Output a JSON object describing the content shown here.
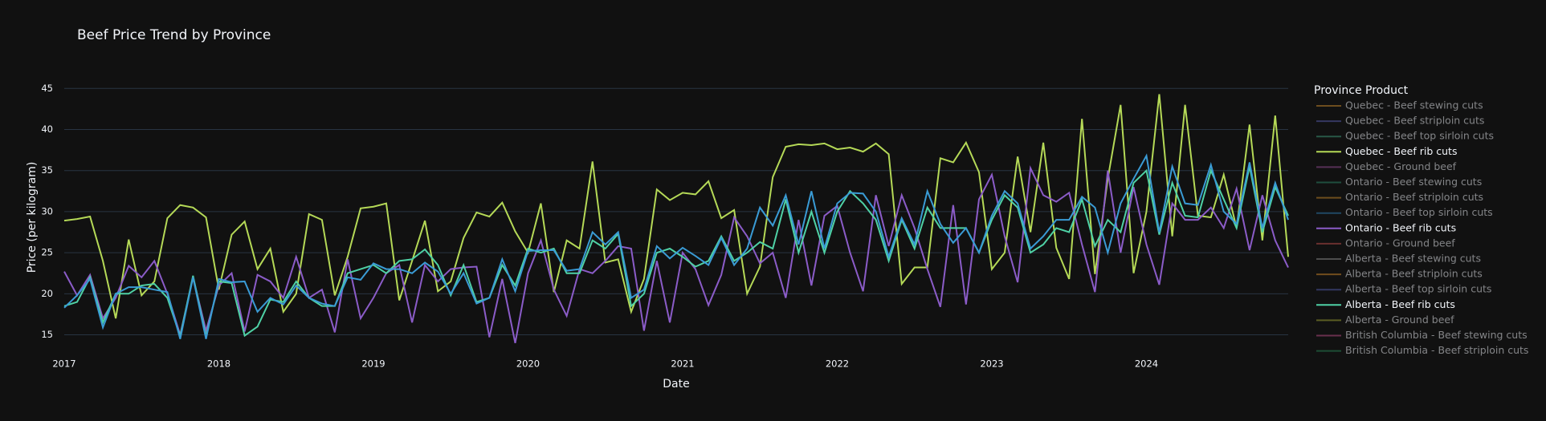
{
  "chart_data": {
    "type": "line",
    "title": "Beef Price Trend by Province",
    "x_label": "Date",
    "y_label": "Price (per kilogram)",
    "legend_title": "Province Product",
    "legend": "right",
    "grid": true,
    "x": [
      2017,
      2017.083,
      2017.167,
      2017.25,
      2017.333,
      2017.417,
      2017.5,
      2017.583,
      2017.667,
      2017.75,
      2017.833,
      2017.917,
      2018,
      2018.083,
      2018.167,
      2018.25,
      2018.333,
      2018.417,
      2018.5,
      2018.583,
      2018.667,
      2018.75,
      2018.833,
      2018.917,
      2019,
      2019.083,
      2019.167,
      2019.25,
      2019.333,
      2019.417,
      2019.5,
      2019.583,
      2019.667,
      2019.75,
      2019.833,
      2019.917,
      2020,
      2020.083,
      2020.167,
      2020.25,
      2020.333,
      2020.417,
      2020.5,
      2020.583,
      2020.667,
      2020.75,
      2020.833,
      2020.917,
      2021,
      2021.083,
      2021.167,
      2021.25,
      2021.333,
      2021.417,
      2021.5,
      2021.583,
      2021.667,
      2021.75,
      2021.833,
      2021.917,
      2022,
      2022.083,
      2022.167,
      2022.25,
      2022.333,
      2022.417,
      2022.5,
      2022.583,
      2022.667,
      2022.75,
      2022.833,
      2022.917,
      2023,
      2023.083,
      2023.167,
      2023.25,
      2023.333,
      2023.417,
      2023.5,
      2023.583,
      2023.667,
      2023.75,
      2023.833,
      2023.917,
      2024,
      2024.083,
      2024.167,
      2024.25,
      2024.333,
      2024.417,
      2024.5,
      2024.583,
      2024.667,
      2024.75,
      2024.833,
      2024.917
    ],
    "xlim": [
      2017,
      2024.917
    ],
    "xticks": [
      2017,
      2018,
      2019,
      2020,
      2021,
      2022,
      2023,
      2024
    ],
    "ylim": [
      13,
      46.2
    ],
    "yticks": [
      15,
      20,
      25,
      30,
      35,
      40,
      45
    ],
    "series": [
      {
        "name": "Quebec - Beef stewing cuts",
        "color": "#c98a2b",
        "visible": "legendonly"
      },
      {
        "name": "Quebec - Beef striploin cuts",
        "color": "#5a5fb0",
        "visible": "legendonly"
      },
      {
        "name": "Quebec - Beef top sirloin cuts",
        "color": "#3f9e7e",
        "visible": "legendonly"
      },
      {
        "name": "Quebec - Beef rib cuts",
        "color": "#b5d957",
        "values": [
          28.9,
          29.1,
          29.4,
          24.0,
          17.0,
          26.6,
          19.8,
          21.5,
          29.2,
          30.8,
          30.5,
          29.3,
          20.5,
          27.2,
          28.8,
          23.0,
          25.5,
          17.8,
          20.0,
          29.7,
          29.0,
          19.8,
          24.5,
          30.4,
          30.6,
          31.0,
          19.2,
          24.0,
          28.9,
          20.3,
          21.5,
          26.8,
          29.9,
          29.4,
          31.1,
          27.6,
          25.0,
          31.0,
          20.2,
          26.5,
          25.5,
          36.1,
          23.8,
          24.2,
          17.8,
          21.8,
          32.7,
          31.4,
          32.3,
          32.1,
          33.7,
          29.2,
          30.2,
          20.0,
          23.3,
          34.2,
          37.9,
          38.2,
          38.1,
          38.3,
          37.6,
          37.8,
          37.3,
          38.3,
          37.0,
          21.2,
          23.2,
          23.2,
          36.5,
          36.0,
          38.4,
          34.8,
          23.0,
          25.0,
          36.7,
          27.5,
          38.4,
          25.6,
          21.8,
          41.3,
          22.4,
          34.0,
          43.0,
          22.5,
          30.0,
          44.3,
          27.0,
          43.0,
          29.5,
          29.3,
          34.5,
          28.0,
          40.6,
          26.5,
          41.7,
          24.5
        ]
      },
      {
        "name": "Quebec - Ground beef",
        "color": "#9a4f9a",
        "visible": "legendonly"
      },
      {
        "name": "Ontario - Beef stewing cuts",
        "color": "#2e8b6b",
        "visible": "legendonly"
      },
      {
        "name": "Ontario - Beef striploin cuts",
        "color": "#c98a2b",
        "visible": "legendonly"
      },
      {
        "name": "Ontario - Beef top sirloin cuts",
        "color": "#2f7fb5",
        "visible": "legendonly"
      },
      {
        "name": "Ontario - Beef rib cuts",
        "color": "#8b5cc8",
        "values": [
          22.7,
          19.8,
          22.3,
          17.0,
          19.5,
          23.4,
          22.0,
          24.0,
          20.0,
          15.0,
          22.0,
          15.5,
          21.0,
          22.5,
          15.4,
          22.3,
          21.5,
          19.5,
          24.5,
          19.5,
          20.5,
          15.3,
          24.2,
          17.0,
          19.5,
          22.5,
          23.5,
          16.5,
          23.5,
          21.5,
          23.0,
          23.2,
          23.3,
          14.7,
          21.8,
          14.0,
          22.5,
          26.5,
          20.5,
          17.3,
          23.0,
          22.5,
          24.0,
          25.8,
          25.5,
          15.5,
          24.0,
          16.5,
          25.0,
          23.0,
          18.6,
          22.3,
          29.3,
          27.0,
          23.7,
          25.0,
          19.5,
          29.0,
          21.0,
          29.5,
          30.7,
          25.0,
          20.3,
          32.0,
          25.8,
          32.0,
          28.0,
          23.0,
          18.4,
          30.8,
          18.7,
          31.5,
          34.5,
          27.0,
          21.4,
          35.3,
          32.0,
          31.2,
          32.3,
          26.0,
          20.2,
          35.0,
          25.0,
          33.0,
          26.0,
          21.1,
          31.0,
          29.0,
          29.0,
          30.5,
          28.0,
          32.8,
          25.3,
          32.0,
          26.5,
          23.2
        ]
      },
      {
        "name": "Ontario - Ground beef",
        "color": "#c0504d",
        "visible": "legendonly"
      },
      {
        "name": "Alberta - Beef stewing cuts",
        "color": "#8c8c8c",
        "visible": "legendonly"
      },
      {
        "name": "Alberta - Beef striploin cuts",
        "color": "#d08a2a",
        "visible": "legendonly"
      },
      {
        "name": "Alberta - Beef top sirloin cuts",
        "color": "#5560b0",
        "visible": "legendonly"
      },
      {
        "name": "Alberta - Beef rib cuts",
        "color": "#4fd1a5",
        "values": [
          18.5,
          19.0,
          22.0,
          16.5,
          20.0,
          20.0,
          21.0,
          21.2,
          19.5,
          14.8,
          22.2,
          14.8,
          21.5,
          21.3,
          14.9,
          16.0,
          19.3,
          19.0,
          21.5,
          19.5,
          18.5,
          18.5,
          22.5,
          23.0,
          23.5,
          22.5,
          24.0,
          24.2,
          25.4,
          23.5,
          19.8,
          23.5,
          19.0,
          19.5,
          23.5,
          21.0,
          25.5,
          25.0,
          25.5,
          22.5,
          22.5,
          26.5,
          25.5,
          27.3,
          18.5,
          20.0,
          25.0,
          25.5,
          24.5,
          23.3,
          24.0,
          27.0,
          24.0,
          25.0,
          26.3,
          25.5,
          31.5,
          25.0,
          30.0,
          25.0,
          30.0,
          32.5,
          31.0,
          29.0,
          24.0,
          29.0,
          25.5,
          30.5,
          28.0,
          28.0,
          28.0,
          25.0,
          29.0,
          32.0,
          30.5,
          25.0,
          26.0,
          28.0,
          27.5,
          31.5,
          25.8,
          29.0,
          27.5,
          33.5,
          35.0,
          27.2,
          33.5,
          29.5,
          29.3,
          35.0,
          31.5,
          28.0,
          35.5,
          27.5,
          33.0,
          29.5
        ]
      },
      {
        "name": "Alberta - Ground beef",
        "color": "#a5a836",
        "visible": "legendonly"
      },
      {
        "name": "British Columbia - Beef stewing cuts",
        "color": "#c04f8a",
        "visible": "legendonly"
      },
      {
        "name": "British Columbia - Beef striploin cuts",
        "color": "#2a8a5a",
        "visible": "legendonly"
      },
      {
        "color": "#3a9bd5",
        "values": [
          18.3,
          19.8,
          21.8,
          15.9,
          20.0,
          20.8,
          20.8,
          20.5,
          20.2,
          14.5,
          22.0,
          14.5,
          21.8,
          21.4,
          21.5,
          17.8,
          19.5,
          18.7,
          21.0,
          19.5,
          18.8,
          18.5,
          22.0,
          21.7,
          23.7,
          23.0,
          23.0,
          22.5,
          23.8,
          22.7,
          20.0,
          22.5,
          18.8,
          19.5,
          24.2,
          20.3,
          25.2,
          25.3,
          25.3,
          22.8,
          23.0,
          27.5,
          26.0,
          27.5,
          19.5,
          20.5,
          25.8,
          24.3,
          25.6,
          24.6,
          23.5,
          26.8,
          23.5,
          25.5,
          30.5,
          28.3,
          32.0,
          26.0,
          32.5,
          25.5,
          31.0,
          32.3,
          32.2,
          30.0,
          24.5,
          29.2,
          26.0,
          32.5,
          28.5,
          26.2,
          28.0,
          25.0,
          29.5,
          32.5,
          31.0,
          25.5,
          27.0,
          29.0,
          29.0,
          31.8,
          30.5,
          25.0,
          31.0,
          34.0,
          36.8,
          27.5,
          35.5,
          31.0,
          30.8,
          35.7,
          30.0,
          28.5,
          36.0,
          28.0,
          33.5,
          29.0
        ]
      }
    ]
  }
}
